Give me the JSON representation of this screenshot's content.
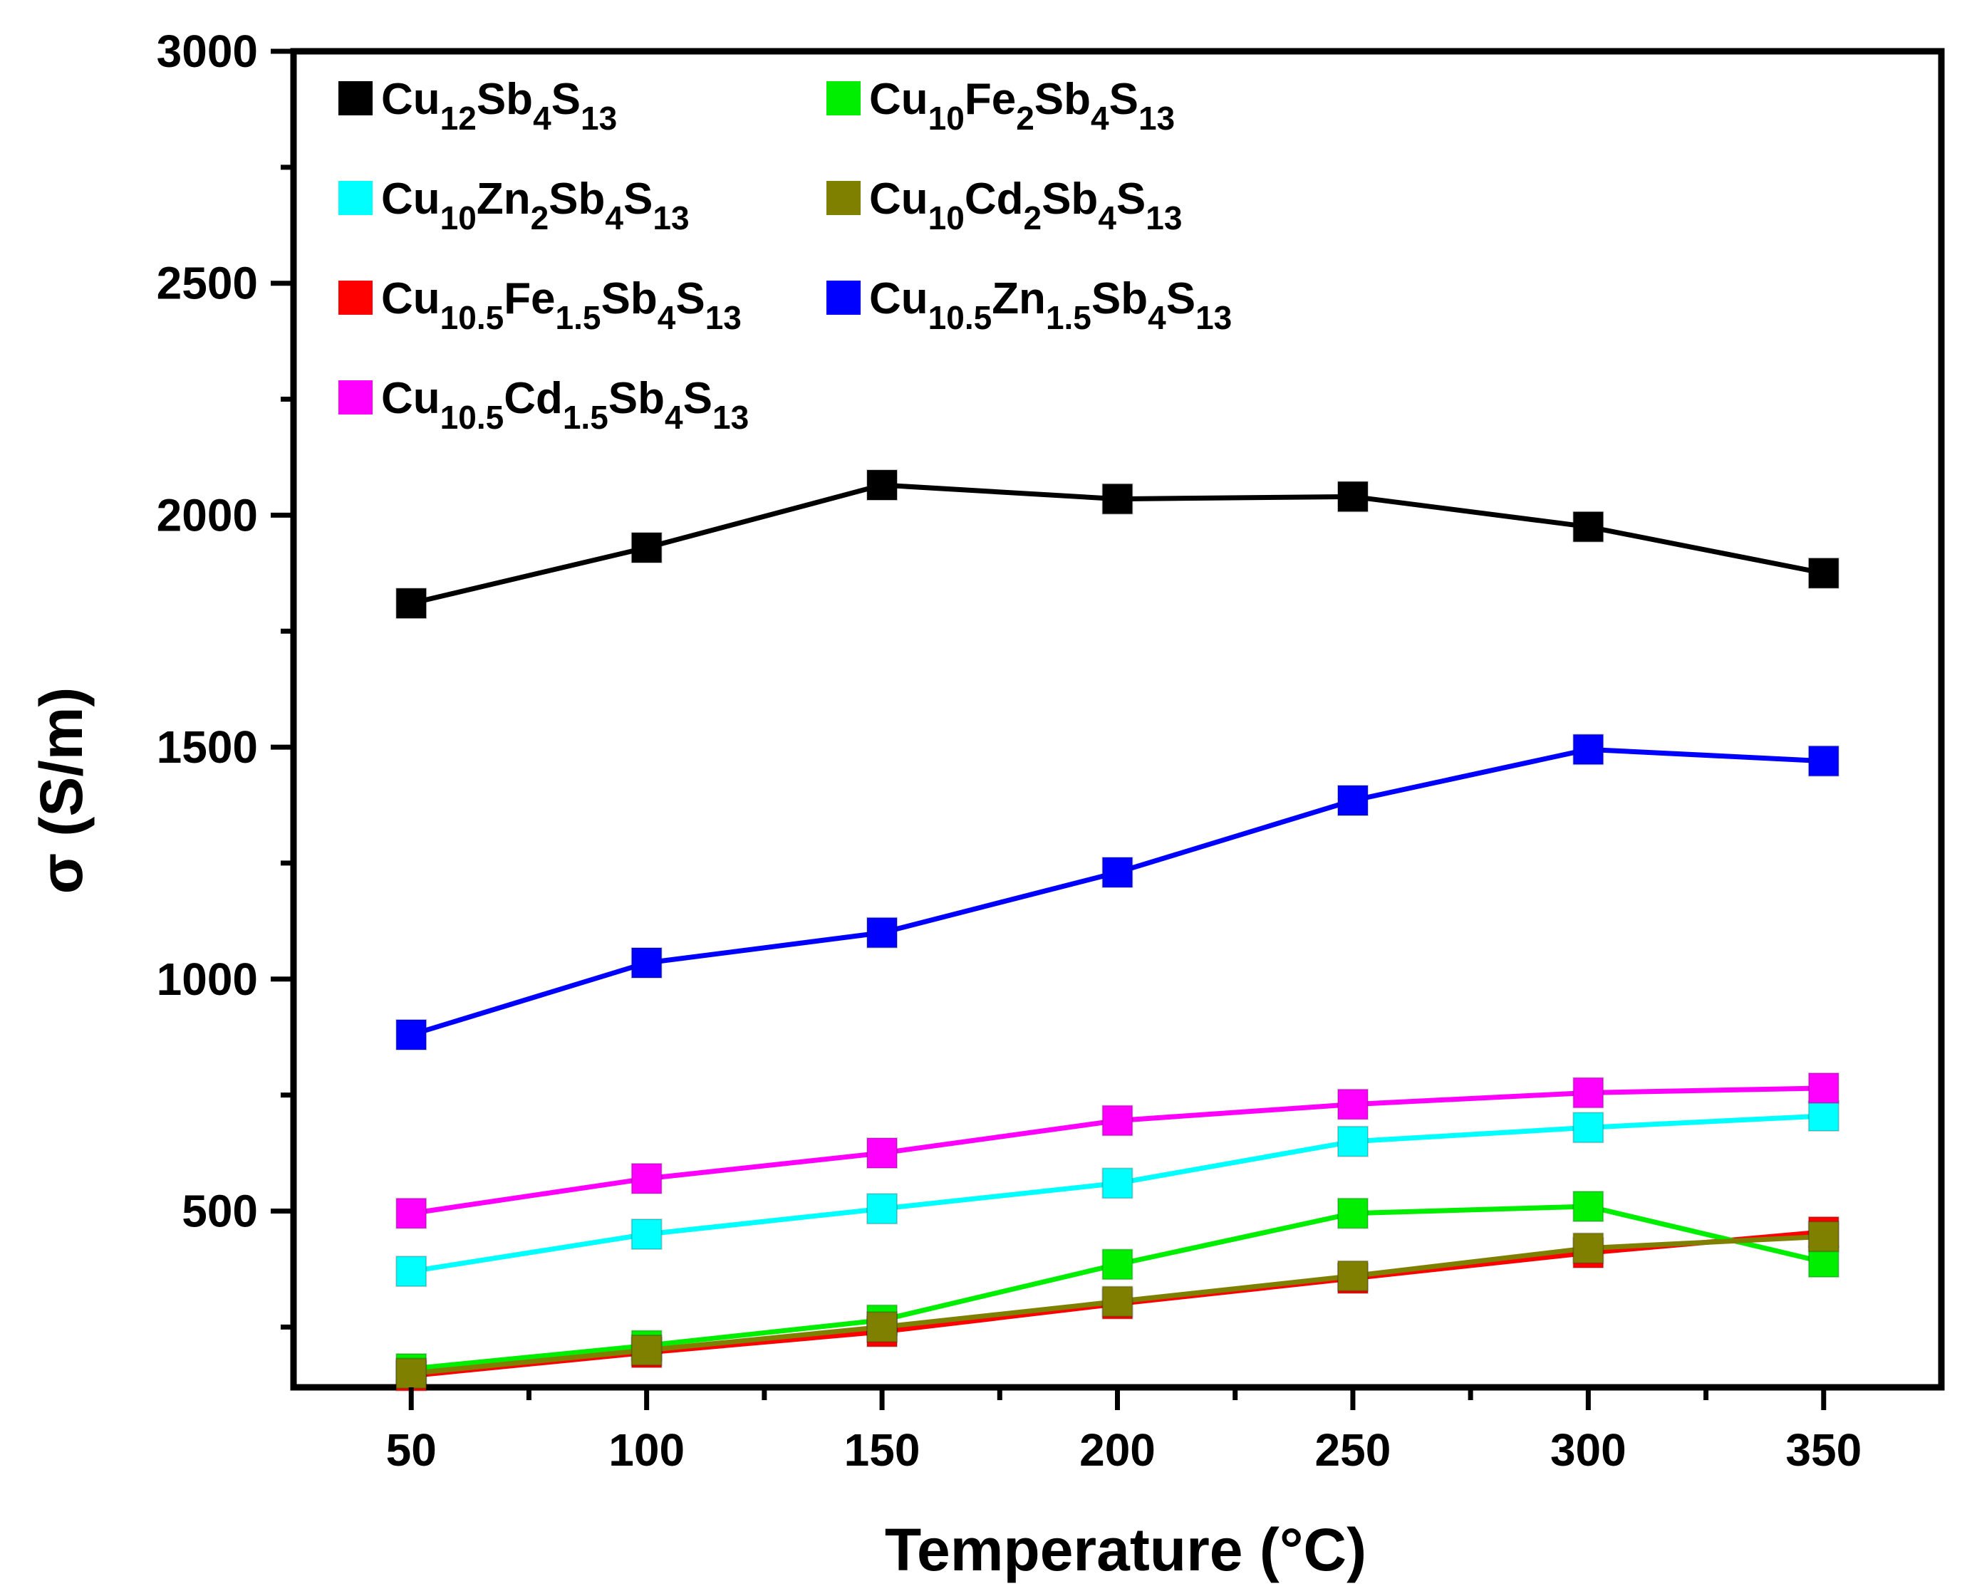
{
  "chart_data": {
    "type": "line",
    "title": "",
    "xlabel": "Temperature (°C)",
    "ylabel": "σ (S/m)",
    "xlim": [
      25,
      375
    ],
    "ylim": [
      120,
      3000
    ],
    "x_ticks": [
      50,
      100,
      150,
      200,
      250,
      300,
      350
    ],
    "y_ticks": [
      500,
      1000,
      1500,
      2000,
      2500,
      3000
    ],
    "x": [
      50,
      100,
      150,
      200,
      250,
      300,
      350
    ],
    "legend_position": "top-left",
    "series": [
      {
        "name": "Cu12Sb4S13",
        "color": "#000000",
        "legend_parts": [
          [
            "Cu",
            "n"
          ],
          [
            "12",
            "s"
          ],
          [
            "Sb",
            "n"
          ],
          [
            "4",
            "s"
          ],
          [
            "S",
            "n"
          ],
          [
            "13",
            "s"
          ]
        ],
        "values": [
          1810,
          1930,
          2065,
          2035,
          2040,
          1975,
          1875
        ]
      },
      {
        "name": "Cu10.5Fe1.5Sb4S13",
        "color": "#ff0000",
        "legend_parts": [
          [
            "Cu",
            "n"
          ],
          [
            "10.5",
            "s"
          ],
          [
            "Fe",
            "n"
          ],
          [
            "1.5",
            "s"
          ],
          [
            "Sb",
            "n"
          ],
          [
            "4",
            "s"
          ],
          [
            "S",
            "n"
          ],
          [
            "13",
            "s"
          ]
        ],
        "values": [
          145,
          195,
          240,
          300,
          355,
          410,
          455
        ]
      },
      {
        "name": "Cu10Fe2Sb4S13",
        "color": "#00ee00",
        "legend_parts": [
          [
            "Cu",
            "n"
          ],
          [
            "10",
            "s"
          ],
          [
            "Fe",
            "n"
          ],
          [
            "2",
            "s"
          ],
          [
            "Sb",
            "n"
          ],
          [
            "4",
            "s"
          ],
          [
            "S",
            "n"
          ],
          [
            "13",
            "s"
          ]
        ],
        "values": [
          160,
          210,
          265,
          385,
          495,
          510,
          390
        ]
      },
      {
        "name": "Cu10.5Zn1.5Sb4S13",
        "color": "#0000ff",
        "legend_parts": [
          [
            "Cu",
            "n"
          ],
          [
            "10.5",
            "s"
          ],
          [
            "Zn",
            "n"
          ],
          [
            "1.5",
            "s"
          ],
          [
            "Sb",
            "n"
          ],
          [
            "4",
            "s"
          ],
          [
            "S",
            "n"
          ],
          [
            "13",
            "s"
          ]
        ],
        "values": [
          880,
          1035,
          1100,
          1230,
          1385,
          1495,
          1470
        ]
      },
      {
        "name": "Cu10Zn2Sb4S13",
        "color": "#00ffff",
        "legend_parts": [
          [
            "Cu",
            "n"
          ],
          [
            "10",
            "s"
          ],
          [
            "Zn",
            "n"
          ],
          [
            "2",
            "s"
          ],
          [
            "Sb",
            "n"
          ],
          [
            "4",
            "s"
          ],
          [
            "S",
            "n"
          ],
          [
            "13",
            "s"
          ]
        ],
        "values": [
          370,
          450,
          505,
          560,
          650,
          680,
          705
        ]
      },
      {
        "name": "Cu10.5Cd1.5Sb4S13",
        "color": "#ff00ff",
        "legend_parts": [
          [
            "Cu",
            "n"
          ],
          [
            "10.5",
            "s"
          ],
          [
            "Cd",
            "n"
          ],
          [
            "1.5",
            "s"
          ],
          [
            "Sb",
            "n"
          ],
          [
            "4",
            "s"
          ],
          [
            "S",
            "n"
          ],
          [
            "13",
            "s"
          ]
        ],
        "values": [
          495,
          570,
          625,
          695,
          730,
          755,
          765
        ]
      },
      {
        "name": "Cu10Cd2Sb4S13",
        "color": "#808000",
        "legend_parts": [
          [
            "Cu",
            "n"
          ],
          [
            "10",
            "s"
          ],
          [
            "Cd",
            "n"
          ],
          [
            "2",
            "s"
          ],
          [
            "Sb",
            "n"
          ],
          [
            "4",
            "s"
          ],
          [
            "S",
            "n"
          ],
          [
            "13",
            "s"
          ]
        ],
        "values": [
          150,
          200,
          250,
          305,
          360,
          420,
          445
        ]
      }
    ]
  }
}
